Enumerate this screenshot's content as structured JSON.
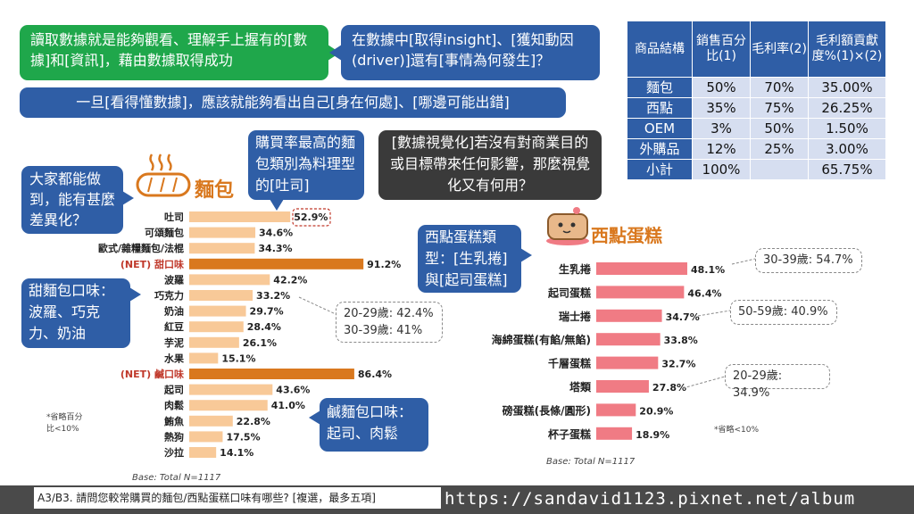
{
  "callouts": {
    "top_green": "讀取數據就是能夠觀看、理解手上握有的[數據]和[資訊]，藉由數據取得成功",
    "top_blue": "在數據中[取得insight]、[獲知動因(driver)]還有[事情為何發生]？",
    "wide_blue": "一旦[看得懂數據]，應該就能夠看出自己[身在何處]、[哪邊可能出錯]",
    "diff": "大家都能做到，能有甚麼差異化？",
    "highest": "購買率最高的麵包類別為料理型的[吐司]",
    "visual": "[數據視覺化]若沒有對商業目的或目標帶來任何影響，那麼視覺化又有何用？",
    "cake_type": "西點蛋糕類型：[生乳捲]與[起司蛋糕]",
    "sweet": "甜麵包口味：波羅、巧克力、奶油",
    "salty": "鹹麵包口味：起司、肉鬆"
  },
  "table": {
    "headers": [
      "商品結構",
      "銷售百分比(1)",
      "毛利率(2)",
      "毛利額貢獻度%(1)×(2)"
    ],
    "rows": [
      [
        "麵包",
        "50%",
        "70%",
        "35.00%"
      ],
      [
        "西點",
        "35%",
        "75%",
        "26.25%"
      ],
      [
        "OEM",
        "3%",
        "50%",
        "1.50%"
      ],
      [
        "外購品",
        "12%",
        "25%",
        "3.00%"
      ],
      [
        "小計",
        "100%",
        "",
        "65.75%"
      ]
    ]
  },
  "colors": {
    "bread_bar": "#f8c998",
    "bread_net": "#d9781e",
    "cake_bar": "#f07b84",
    "green": "#1fa74b",
    "blue": "#2f5ea6",
    "dark": "#3a3a3a"
  },
  "chart_data": [
    {
      "type": "bar",
      "orientation": "horizontal",
      "title": "麵包",
      "categories": [
        "吐司",
        "可頌麵包",
        "歐式/雜糧麵包/法棍",
        "(NET) 甜口味",
        "波羅",
        "巧克力",
        "奶油",
        "紅豆",
        "芋泥",
        "水果",
        "(NET) 鹹口味",
        "起司",
        "肉鬆",
        "鮪魚",
        "熱狗",
        "沙拉"
      ],
      "values": [
        52.9,
        34.6,
        34.3,
        91.2,
        42.2,
        33.2,
        29.7,
        28.4,
        26.1,
        15.1,
        86.4,
        43.6,
        41.0,
        22.8,
        17.5,
        14.1
      ],
      "value_labels": [
        "52.9%",
        "34.6%",
        "34.3%",
        "91.2%",
        "42.2%",
        "33.2%",
        "29.7%",
        "28.4%",
        "26.1%",
        "15.1%",
        "86.4%",
        "43.6%",
        "41.0%",
        "22.8%",
        "17.5%",
        "14.1%"
      ],
      "net_rows": [
        "(NET) 甜口味",
        "(NET) 鹹口味"
      ],
      "xlim": [
        0,
        100
      ],
      "base": "Base: Total  N=1117",
      "note": "*省略百分比<10%",
      "annotation": "20-29歲: 42.4%\n30-39歲: 41%"
    },
    {
      "type": "bar",
      "orientation": "horizontal",
      "title": "西點蛋糕",
      "categories": [
        "生乳捲",
        "起司蛋糕",
        "瑞士捲",
        "海綿蛋糕(有餡/無餡)",
        "千層蛋糕",
        "塔類",
        "磅蛋糕(長條/圓形)",
        "杯子蛋糕"
      ],
      "values": [
        48.1,
        46.4,
        34.7,
        33.8,
        32.7,
        27.8,
        20.9,
        18.9
      ],
      "value_labels": [
        "48.1%",
        "46.4%",
        "34.7%",
        "33.8%",
        "32.7%",
        "27.8%",
        "20.9%",
        "18.9%"
      ],
      "xlim": [
        0,
        100
      ],
      "base": "Base: Total  N=1117",
      "note": "*省略<10%",
      "annotations": [
        "30-39歲: 54.7%",
        "50-59歲: 40.9%",
        "20-29歲: 34.9%"
      ]
    }
  ],
  "footer": {
    "question": "A3/B3. 請問您較常購買的麵包/西點蛋糕口味有哪些? [複選，最多五項]",
    "url": "https://sandavid1123.pixnet.net/album"
  }
}
